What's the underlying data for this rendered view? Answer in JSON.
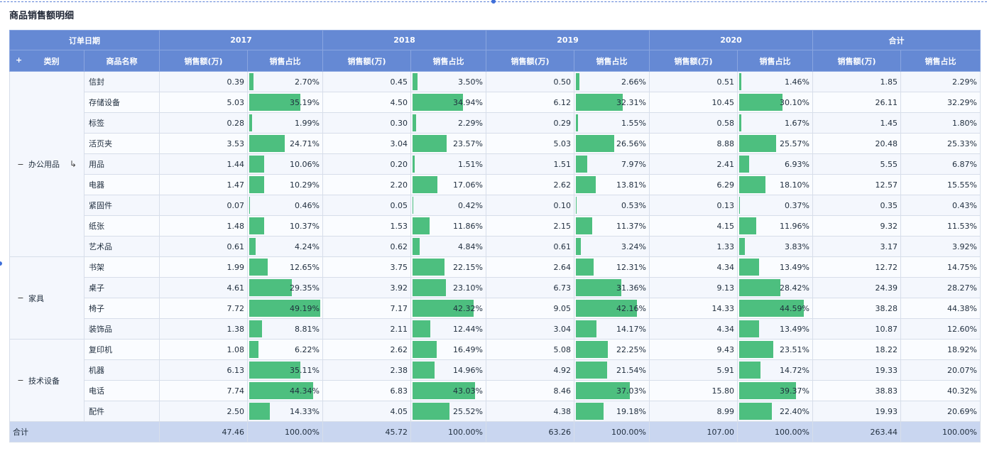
{
  "title": "商品销售额明细",
  "header": {
    "date_label": "订单日期",
    "years": [
      "2017",
      "2018",
      "2019",
      "2020"
    ],
    "total_label": "合计",
    "category_label": "类别",
    "product_label": "商品名称",
    "sales_label": "销售额(万)",
    "share_label": "销售占比",
    "expand_icon": "plus-icon"
  },
  "colors": {
    "header_bg": "#6589d4",
    "bar": "#4dbf7f",
    "total_bg": "#c9d6f0"
  },
  "groups": [
    {
      "name": "办公用品",
      "collapse_icon": "minus-icon",
      "drill_icon": "drill-down-icon",
      "rows": [
        {
          "product": "信封",
          "cells": [
            [
              "0.39",
              "2.70%"
            ],
            [
              "0.45",
              "3.50%"
            ],
            [
              "0.50",
              "2.66%"
            ],
            [
              "0.51",
              "1.46%"
            ]
          ],
          "total": [
            "1.85",
            "2.29%"
          ],
          "fill": [
            0.027,
            0.035,
            0.0266,
            0.0146
          ]
        },
        {
          "product": "存储设备",
          "cells": [
            [
              "5.03",
              "35.19%"
            ],
            [
              "4.50",
              "34.94%"
            ],
            [
              "6.12",
              "32.31%"
            ],
            [
              "10.45",
              "30.10%"
            ]
          ],
          "total": [
            "26.11",
            "32.29%"
          ],
          "fill": [
            0.3519,
            0.3494,
            0.3231,
            0.301
          ]
        },
        {
          "product": "标签",
          "cells": [
            [
              "0.28",
              "1.99%"
            ],
            [
              "0.30",
              "2.29%"
            ],
            [
              "0.29",
              "1.55%"
            ],
            [
              "0.58",
              "1.67%"
            ]
          ],
          "total": [
            "1.45",
            "1.80%"
          ],
          "fill": [
            0.0199,
            0.0229,
            0.0155,
            0.0167
          ]
        },
        {
          "product": "活页夹",
          "cells": [
            [
              "3.53",
              "24.71%"
            ],
            [
              "3.04",
              "23.57%"
            ],
            [
              "5.03",
              "26.56%"
            ],
            [
              "8.88",
              "25.57%"
            ]
          ],
          "total": [
            "20.48",
            "25.33%"
          ],
          "fill": [
            0.2471,
            0.2357,
            0.2656,
            0.2557
          ]
        },
        {
          "product": "用品",
          "cells": [
            [
              "1.44",
              "10.06%"
            ],
            [
              "0.20",
              "1.51%"
            ],
            [
              "1.51",
              "7.97%"
            ],
            [
              "2.41",
              "6.93%"
            ]
          ],
          "total": [
            "5.55",
            "6.87%"
          ],
          "fill": [
            0.1006,
            0.0151,
            0.0797,
            0.0693
          ]
        },
        {
          "product": "电器",
          "cells": [
            [
              "1.47",
              "10.29%"
            ],
            [
              "2.20",
              "17.06%"
            ],
            [
              "2.62",
              "13.81%"
            ],
            [
              "6.29",
              "18.10%"
            ]
          ],
          "total": [
            "12.57",
            "15.55%"
          ],
          "fill": [
            0.1029,
            0.1706,
            0.1381,
            0.181
          ]
        },
        {
          "product": "紧固件",
          "cells": [
            [
              "0.07",
              "0.46%"
            ],
            [
              "0.05",
              "0.42%"
            ],
            [
              "0.10",
              "0.53%"
            ],
            [
              "0.13",
              "0.37%"
            ]
          ],
          "total": [
            "0.35",
            "0.43%"
          ],
          "fill": [
            0.0046,
            0.0042,
            0.0053,
            0.0037
          ]
        },
        {
          "product": "纸张",
          "cells": [
            [
              "1.48",
              "10.37%"
            ],
            [
              "1.53",
              "11.86%"
            ],
            [
              "2.15",
              "11.37%"
            ],
            [
              "4.15",
              "11.96%"
            ]
          ],
          "total": [
            "9.32",
            "11.53%"
          ],
          "fill": [
            0.1037,
            0.1186,
            0.1137,
            0.1196
          ]
        },
        {
          "product": "艺术品",
          "cells": [
            [
              "0.61",
              "4.24%"
            ],
            [
              "0.62",
              "4.84%"
            ],
            [
              "0.61",
              "3.24%"
            ],
            [
              "1.33",
              "3.83%"
            ]
          ],
          "total": [
            "3.17",
            "3.92%"
          ],
          "fill": [
            0.0424,
            0.0484,
            0.0324,
            0.0383
          ]
        }
      ]
    },
    {
      "name": "家具",
      "collapse_icon": "minus-icon",
      "rows": [
        {
          "product": "书架",
          "cells": [
            [
              "1.99",
              "12.65%"
            ],
            [
              "3.75",
              "22.15%"
            ],
            [
              "2.64",
              "12.31%"
            ],
            [
              "4.34",
              "13.49%"
            ]
          ],
          "total": [
            "12.72",
            "14.75%"
          ],
          "fill": [
            0.1265,
            0.2215,
            0.1231,
            0.1349
          ]
        },
        {
          "product": "桌子",
          "cells": [
            [
              "4.61",
              "29.35%"
            ],
            [
              "3.92",
              "23.10%"
            ],
            [
              "6.73",
              "31.36%"
            ],
            [
              "9.13",
              "28.42%"
            ]
          ],
          "total": [
            "24.39",
            "28.27%"
          ],
          "fill": [
            0.2935,
            0.231,
            0.3136,
            0.2842
          ]
        },
        {
          "product": "椅子",
          "cells": [
            [
              "7.72",
              "49.19%"
            ],
            [
              "7.17",
              "42.32%"
            ],
            [
              "9.05",
              "42.16%"
            ],
            [
              "14.33",
              "44.59%"
            ]
          ],
          "total": [
            "38.28",
            "44.38%"
          ],
          "fill": [
            0.4919,
            0.4232,
            0.4216,
            0.4459
          ]
        },
        {
          "product": "装饰品",
          "cells": [
            [
              "1.38",
              "8.81%"
            ],
            [
              "2.11",
              "12.44%"
            ],
            [
              "3.04",
              "14.17%"
            ],
            [
              "4.34",
              "13.49%"
            ]
          ],
          "total": [
            "10.87",
            "12.60%"
          ],
          "fill": [
            0.0881,
            0.1244,
            0.1417,
            0.1349
          ]
        }
      ]
    },
    {
      "name": "技术设备",
      "collapse_icon": "minus-icon",
      "rows": [
        {
          "product": "复印机",
          "cells": [
            [
              "1.08",
              "6.22%"
            ],
            [
              "2.62",
              "16.49%"
            ],
            [
              "5.08",
              "22.25%"
            ],
            [
              "9.43",
              "23.51%"
            ]
          ],
          "total": [
            "18.22",
            "18.92%"
          ],
          "fill": [
            0.0622,
            0.1649,
            0.2225,
            0.2351
          ]
        },
        {
          "product": "机器",
          "cells": [
            [
              "6.13",
              "35.11%"
            ],
            [
              "2.38",
              "14.96%"
            ],
            [
              "4.92",
              "21.54%"
            ],
            [
              "5.91",
              "14.72%"
            ]
          ],
          "total": [
            "19.33",
            "20.07%"
          ],
          "fill": [
            0.3511,
            0.1496,
            0.2154,
            0.1472
          ]
        },
        {
          "product": "电话",
          "cells": [
            [
              "7.74",
              "44.34%"
            ],
            [
              "6.83",
              "43.03%"
            ],
            [
              "8.46",
              "37.03%"
            ],
            [
              "15.80",
              "39.37%"
            ]
          ],
          "total": [
            "38.83",
            "40.32%"
          ],
          "fill": [
            0.4434,
            0.4303,
            0.3703,
            0.3937
          ]
        },
        {
          "product": "配件",
          "cells": [
            [
              "2.50",
              "14.33%"
            ],
            [
              "4.05",
              "25.52%"
            ],
            [
              "4.38",
              "19.18%"
            ],
            [
              "8.99",
              "22.40%"
            ]
          ],
          "total": [
            "19.93",
            "20.69%"
          ],
          "fill": [
            0.1433,
            0.2552,
            0.1918,
            0.224
          ]
        }
      ]
    }
  ],
  "grand_total": {
    "label": "合计",
    "cells": [
      [
        "47.46",
        "100.00%"
      ],
      [
        "45.72",
        "100.00%"
      ],
      [
        "63.26",
        "100.00%"
      ],
      [
        "107.00",
        "100.00%"
      ]
    ],
    "total": [
      "263.44",
      "100.00%"
    ]
  }
}
